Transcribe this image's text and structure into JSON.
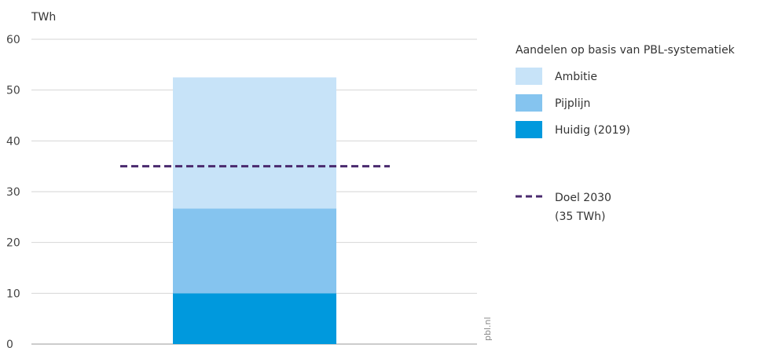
{
  "chart_data": {
    "type": "bar",
    "stacked": true,
    "categories": [
      ""
    ],
    "ylabel": "TWh",
    "ylim": [
      0,
      60
    ],
    "yticks": [
      0,
      10,
      20,
      30,
      40,
      50,
      60
    ],
    "grid": true,
    "series": [
      {
        "name": "Huidig (2019)",
        "values": [
          10
        ],
        "color": "#0099dd"
      },
      {
        "name": "Pijplijn",
        "values": [
          16.7
        ],
        "color": "#85c4ef"
      },
      {
        "name": "Ambitie",
        "values": [
          25.8
        ],
        "color": "#c7e3f8"
      }
    ],
    "target": {
      "label_line1": "Doel 2030",
      "label_line2": "(35 TWh)",
      "value": 35,
      "color": "#4a2a6e",
      "style": "dashed"
    },
    "legend": {
      "title": "Aandelen op basis van PBL-systematiek",
      "order": [
        "Ambitie",
        "Pijplijn",
        "Huidig (2019)"
      ],
      "placement": "right"
    },
    "credit": "pbl.nl"
  }
}
